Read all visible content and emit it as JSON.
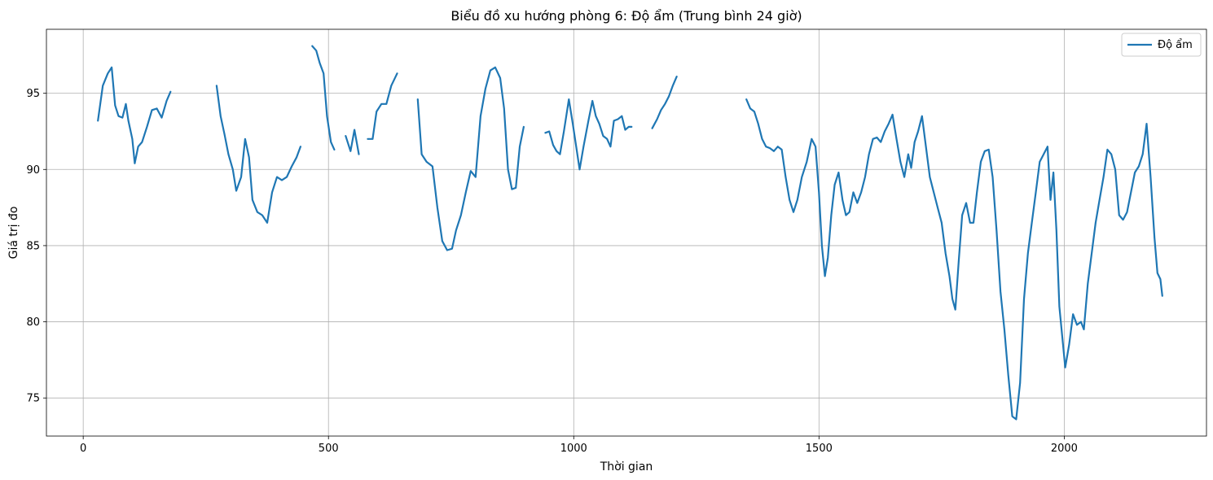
{
  "chart_data": {
    "type": "line",
    "title": "Biểu đồ xu hướng phòng 6: Độ ẩm (Trung bình 24 giờ)",
    "xlabel": "Thời gian",
    "ylabel": "Giá trị đo",
    "xlim": [
      -75,
      2290
    ],
    "ylim": [
      72.5,
      99.2
    ],
    "xticks": [
      0,
      500,
      1000,
      1500,
      2000
    ],
    "xtick_labels": [
      "0",
      "500",
      "1000",
      "1500",
      "2000"
    ],
    "yticks": [
      75,
      80,
      85,
      90,
      95
    ],
    "ytick_labels": [
      "75",
      "80",
      "85",
      "90",
      "95"
    ],
    "grid": true,
    "legend_position": "top-right",
    "series": [
      {
        "name": "Độ ẩm",
        "color": "#1f77b4",
        "segments": [
          [
            [
              30,
              93.2
            ],
            [
              40,
              95.5
            ],
            [
              50,
              96.3
            ],
            [
              58,
              96.7
            ],
            [
              65,
              94.2
            ],
            [
              72,
              93.5
            ],
            [
              80,
              93.4
            ],
            [
              87,
              94.3
            ],
            [
              92,
              93.2
            ],
            [
              100,
              92.0
            ],
            [
              105,
              90.4
            ],
            [
              112,
              91.5
            ],
            [
              120,
              91.8
            ],
            [
              130,
              92.8
            ],
            [
              140,
              93.9
            ],
            [
              150,
              94.0
            ],
            [
              160,
              93.4
            ],
            [
              170,
              94.5
            ],
            [
              178,
              95.1
            ]
          ],
          [
            [
              272,
              95.5
            ],
            [
              280,
              93.5
            ],
            [
              288,
              92.3
            ],
            [
              296,
              91.0
            ],
            [
              305,
              90.0
            ],
            [
              312,
              88.6
            ],
            [
              322,
              89.5
            ],
            [
              330,
              92.0
            ],
            [
              338,
              90.8
            ],
            [
              345,
              88.0
            ],
            [
              355,
              87.2
            ],
            [
              365,
              87.0
            ],
            [
              375,
              86.5
            ],
            [
              385,
              88.5
            ],
            [
              395,
              89.5
            ],
            [
              405,
              89.3
            ],
            [
              415,
              89.5
            ],
            [
              425,
              90.2
            ],
            [
              435,
              90.8
            ],
            [
              443,
              91.5
            ]
          ],
          [
            [
              467,
              98.1
            ],
            [
              475,
              97.8
            ],
            [
              482,
              97.0
            ],
            [
              490,
              96.3
            ],
            [
              497,
              93.5
            ],
            [
              505,
              91.8
            ],
            [
              512,
              91.3
            ]
          ],
          [
            [
              535,
              92.2
            ],
            [
              545,
              91.2
            ],
            [
              553,
              92.6
            ],
            [
              562,
              91.0
            ]
          ],
          [
            [
              580,
              92.0
            ],
            [
              590,
              92.0
            ],
            [
              598,
              93.8
            ],
            [
              608,
              94.3
            ],
            [
              618,
              94.3
            ],
            [
              628,
              95.5
            ],
            [
              640,
              96.3
            ]
          ],
          [
            [
              682,
              94.6
            ],
            [
              690,
              91.0
            ],
            [
              700,
              90.5
            ],
            [
              712,
              90.2
            ],
            [
              722,
              87.5
            ],
            [
              732,
              85.3
            ],
            [
              742,
              84.7
            ],
            [
              752,
              84.8
            ],
            [
              760,
              86.0
            ],
            [
              770,
              87.0
            ],
            [
              780,
              88.5
            ],
            [
              790,
              89.9
            ],
            [
              800,
              89.5
            ],
            [
              810,
              93.5
            ],
            [
              820,
              95.3
            ],
            [
              830,
              96.5
            ],
            [
              840,
              96.7
            ],
            [
              850,
              96.0
            ],
            [
              858,
              94.0
            ],
            [
              866,
              90.0
            ],
            [
              874,
              88.7
            ],
            [
              882,
              88.8
            ],
            [
              890,
              91.5
            ],
            [
              898,
              92.8
            ]
          ],
          [
            [
              942,
              92.4
            ],
            [
              950,
              92.5
            ],
            [
              958,
              91.6
            ],
            [
              965,
              91.2
            ],
            [
              972,
              91.0
            ],
            [
              980,
              92.5
            ],
            [
              990,
              94.6
            ],
            [
              998,
              93.0
            ],
            [
              1005,
              91.5
            ],
            [
              1012,
              90.0
            ],
            [
              1020,
              91.5
            ],
            [
              1030,
              93.2
            ],
            [
              1038,
              94.5
            ],
            [
              1045,
              93.5
            ],
            [
              1052,
              93.0
            ],
            [
              1060,
              92.2
            ],
            [
              1068,
              92.0
            ],
            [
              1075,
              91.5
            ],
            [
              1082,
              93.2
            ],
            [
              1090,
              93.3
            ],
            [
              1098,
              93.5
            ],
            [
              1105,
              92.6
            ],
            [
              1112,
              92.8
            ],
            [
              1118,
              92.8
            ]
          ],
          [
            [
              1160,
              92.7
            ],
            [
              1170,
              93.3
            ],
            [
              1178,
              93.9
            ],
            [
              1186,
              94.3
            ],
            [
              1194,
              94.8
            ],
            [
              1202,
              95.5
            ],
            [
              1210,
              96.1
            ]
          ],
          [
            [
              1352,
              94.6
            ],
            [
              1360,
              94.0
            ],
            [
              1368,
              93.8
            ],
            [
              1376,
              93.0
            ],
            [
              1384,
              92.0
            ],
            [
              1392,
              91.5
            ],
            [
              1400,
              91.4
            ],
            [
              1408,
              91.2
            ],
            [
              1416,
              91.5
            ],
            [
              1424,
              91.3
            ],
            [
              1432,
              89.5
            ],
            [
              1440,
              88.0
            ],
            [
              1448,
              87.2
            ],
            [
              1456,
              88.0
            ],
            [
              1465,
              89.5
            ],
            [
              1475,
              90.5
            ],
            [
              1485,
              92.0
            ],
            [
              1493,
              91.5
            ],
            [
              1500,
              88.5
            ],
            [
              1506,
              85.0
            ],
            [
              1512,
              83.0
            ],
            [
              1518,
              84.2
            ],
            [
              1525,
              87.0
            ],
            [
              1532,
              89.0
            ],
            [
              1540,
              89.8
            ],
            [
              1548,
              88.0
            ],
            [
              1555,
              87.0
            ],
            [
              1562,
              87.2
            ],
            [
              1570,
              88.5
            ],
            [
              1578,
              87.8
            ],
            [
              1586,
              88.5
            ],
            [
              1594,
              89.5
            ],
            [
              1602,
              91.0
            ],
            [
              1610,
              92.0
            ],
            [
              1618,
              92.1
            ],
            [
              1626,
              91.8
            ],
            [
              1634,
              92.5
            ],
            [
              1642,
              93.0
            ],
            [
              1650,
              93.6
            ],
            [
              1658,
              92.0
            ],
            [
              1666,
              90.5
            ],
            [
              1674,
              89.5
            ],
            [
              1682,
              91.0
            ],
            [
              1688,
              90.1
            ],
            [
              1695,
              91.8
            ],
            [
              1702,
              92.5
            ],
            [
              1710,
              93.5
            ],
            [
              1718,
              91.5
            ],
            [
              1726,
              89.5
            ],
            [
              1734,
              88.5
            ],
            [
              1742,
              87.5
            ],
            [
              1750,
              86.5
            ],
            [
              1758,
              84.5
            ],
            [
              1766,
              83.0
            ],
            [
              1772,
              81.5
            ],
            [
              1778,
              80.8
            ],
            [
              1785,
              84.0
            ],
            [
              1792,
              87.0
            ],
            [
              1800,
              87.8
            ],
            [
              1808,
              86.5
            ],
            [
              1815,
              86.5
            ],
            [
              1822,
              88.5
            ],
            [
              1830,
              90.5
            ],
            [
              1838,
              91.2
            ],
            [
              1846,
              91.3
            ],
            [
              1854,
              89.5
            ],
            [
              1862,
              86.0
            ],
            [
              1870,
              82.0
            ],
            [
              1878,
              79.5
            ],
            [
              1886,
              76.5
            ],
            [
              1894,
              73.8
            ],
            [
              1902,
              73.6
            ],
            [
              1910,
              76.0
            ],
            [
              1918,
              81.5
            ],
            [
              1926,
              84.5
            ],
            [
              1934,
              86.5
            ],
            [
              1942,
              88.5
            ],
            [
              1950,
              90.5
            ],
            [
              1958,
              91.0
            ],
            [
              1966,
              91.5
            ],
            [
              1972,
              88.0
            ],
            [
              1978,
              89.8
            ],
            [
              1984,
              86.0
            ],
            [
              1990,
              81.0
            ],
            [
              1996,
              79.0
            ],
            [
              2002,
              77.0
            ],
            [
              2010,
              78.5
            ],
            [
              2018,
              80.5
            ],
            [
              2026,
              79.8
            ],
            [
              2034,
              80.0
            ],
            [
              2040,
              79.5
            ],
            [
              2048,
              82.5
            ],
            [
              2056,
              84.5
            ],
            [
              2064,
              86.5
            ],
            [
              2072,
              88.0
            ],
            [
              2080,
              89.5
            ],
            [
              2088,
              91.3
            ],
            [
              2096,
              91.0
            ],
            [
              2104,
              90.0
            ],
            [
              2112,
              87.0
            ],
            [
              2120,
              86.7
            ],
            [
              2128,
              87.2
            ],
            [
              2136,
              88.5
            ],
            [
              2144,
              89.8
            ],
            [
              2152,
              90.2
            ],
            [
              2160,
              91.0
            ],
            [
              2168,
              93.0
            ],
            [
              2176,
              89.5
            ],
            [
              2184,
              85.5
            ],
            [
              2190,
              83.2
            ],
            [
              2196,
              82.8
            ],
            [
              2200,
              81.7
            ]
          ]
        ]
      }
    ]
  }
}
